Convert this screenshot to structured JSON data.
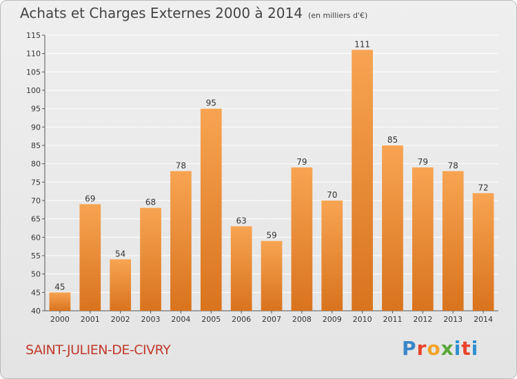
{
  "header": {
    "title": "Achats et Charges Externes 2000 à 2014",
    "subtitle": "(en milliers d'€)"
  },
  "footer": {
    "place": "SAINT-JULIEN-DE-CIVRY",
    "logo": "Proxiti"
  },
  "colors": {
    "bar_top": "#f7a452",
    "bar_bottom": "#d9731d",
    "grid": "#ffffff",
    "place_text": "#c0392b"
  },
  "chart_data": {
    "type": "bar",
    "title": "Achats et Charges Externes 2000 à 2014",
    "subtitle": "(en milliers d'€)",
    "categories": [
      "2000",
      "2001",
      "2002",
      "2003",
      "2004",
      "2005",
      "2006",
      "2007",
      "2008",
      "2009",
      "2010",
      "2011",
      "2012",
      "2013",
      "2014"
    ],
    "values": [
      45,
      69,
      54,
      68,
      78,
      95,
      63,
      59,
      79,
      70,
      111,
      85,
      79,
      78,
      72
    ],
    "ylim": [
      40,
      115
    ],
    "yticks": [
      40,
      45,
      50,
      55,
      60,
      65,
      70,
      75,
      80,
      85,
      90,
      95,
      100,
      105,
      110,
      115
    ],
    "grid": true,
    "legend": "none"
  }
}
